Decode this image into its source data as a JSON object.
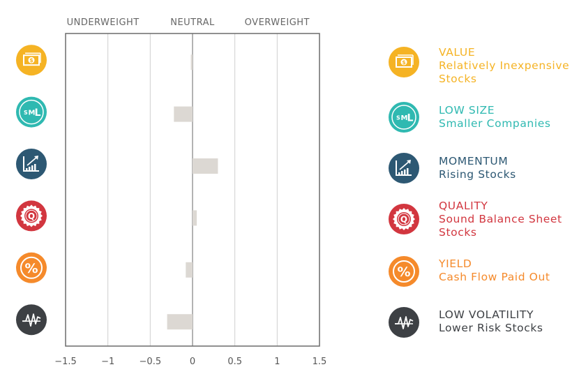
{
  "chart_data": {
    "type": "bar",
    "orientation": "horizontal",
    "categories": [
      "VALUE",
      "LOW SIZE",
      "MOMENTUM",
      "QUALITY",
      "YIELD",
      "LOW VOLATILITY"
    ],
    "values": [
      -0.02,
      -0.22,
      0.3,
      0.05,
      -0.08,
      -0.3
    ],
    "top_labels": [
      "UNDERWEIGHT",
      "NEUTRAL",
      "OVERWEIGHT"
    ],
    "xticks": [
      "−1.5",
      "−1",
      "−0.5",
      "0",
      "0.5",
      "1",
      "1.5"
    ],
    "xlim": [
      -1.5,
      1.5
    ],
    "grid": true,
    "bar_color": "#dcd8d3"
  },
  "factors": [
    {
      "title": "VALUE",
      "desc": "Relatively Inexpensive Stocks",
      "color": "#f5b324",
      "icon": "dollar-bill-icon"
    },
    {
      "title": "LOW SIZE",
      "desc": "Smaller Companies",
      "color": "#2fb9b1",
      "icon": "small-text-icon"
    },
    {
      "title": "MOMENTUM",
      "desc": "Rising Stocks",
      "color": "#2d5873",
      "icon": "rising-chart-icon"
    },
    {
      "title": "QUALITY",
      "desc": "Sound Balance Sheet Stocks",
      "color": "#d2363f",
      "icon": "quality-seal-icon"
    },
    {
      "title": "YIELD",
      "desc": "Cash Flow Paid Out",
      "color": "#f58a2b",
      "icon": "percent-icon"
    },
    {
      "title": "LOW VOLATILITY",
      "desc": "Lower Risk Stocks",
      "color": "#3d4044",
      "icon": "volatility-wave-icon"
    }
  ]
}
